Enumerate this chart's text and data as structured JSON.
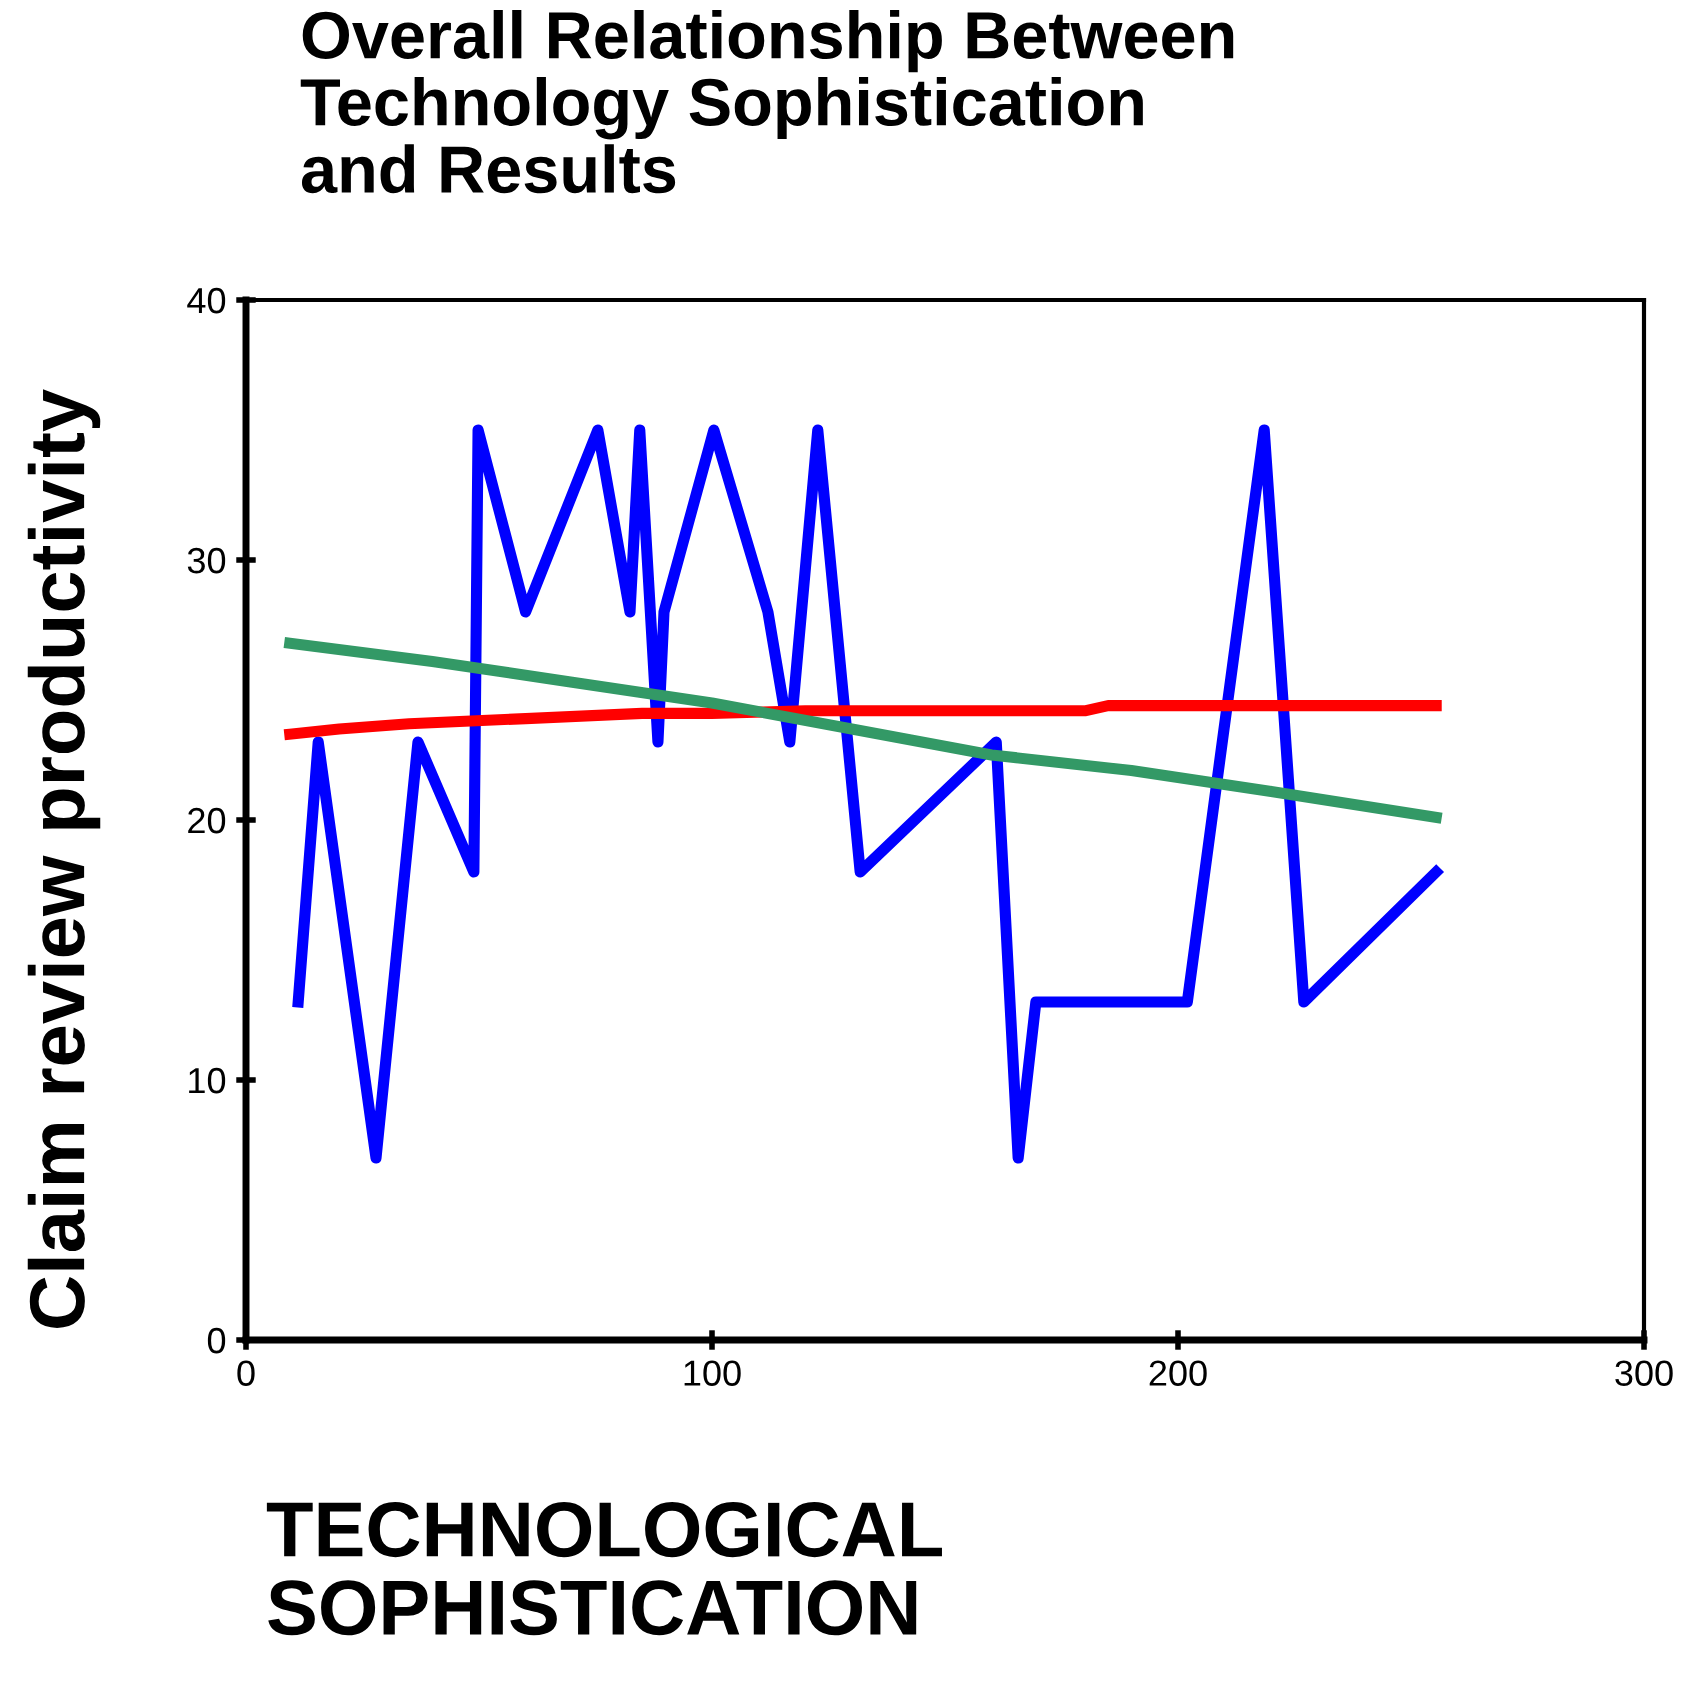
{
  "chart_data": {
    "type": "line",
    "title": "Overall Relationship Between\nTechnology Sophistication\nand Results",
    "xlabel": "TECHNOLOGICAL\nSOPHISTICATION",
    "ylabel": "Claim review productivity",
    "xlim": [
      0,
      300
    ],
    "xticks": [
      0,
      100,
      200,
      300
    ],
    "ylim": [
      0,
      40
    ],
    "yticks": [
      0,
      10,
      20,
      30,
      40
    ],
    "grid": false,
    "legend": false,
    "marker": "none",
    "line_style": "solid",
    "series": [
      {
        "color": "#0000ff",
        "x": [
          11.2,
          15.5,
          27.9,
          36.9,
          48.9,
          49.8,
          60,
          75.5,
          82.4,
          84.5,
          88.4,
          89.7,
          100.4,
          112,
          116.7,
          122.7,
          131.8,
          161,
          165.7,
          169.5,
          202,
          218.5,
          227,
          255.4
        ],
        "values": [
          13,
          23,
          7,
          23,
          18,
          35,
          28,
          35,
          28,
          35,
          23,
          28,
          35,
          28,
          23,
          35,
          18,
          23,
          7,
          13,
          13,
          35,
          13,
          18
        ]
      },
      {
        "color": "#ff0000",
        "x": [
          9.4,
          20,
          35,
          60,
          85,
          100,
          120,
          140,
          160,
          180,
          185,
          220,
          255.4
        ],
        "values": [
          23.3,
          23.5,
          23.7,
          23.9,
          24.1,
          24.1,
          24.2,
          24.2,
          24.2,
          24.2,
          24.4,
          24.4,
          24.4
        ]
      },
      {
        "color": "#339966",
        "x": [
          9.4,
          40,
          70,
          100,
          130,
          160,
          190,
          220,
          255.4
        ],
        "values": [
          26.8,
          26.1,
          25.3,
          24.5,
          23.5,
          22.5,
          21.9,
          21.1,
          20.1
        ]
      }
    ]
  }
}
